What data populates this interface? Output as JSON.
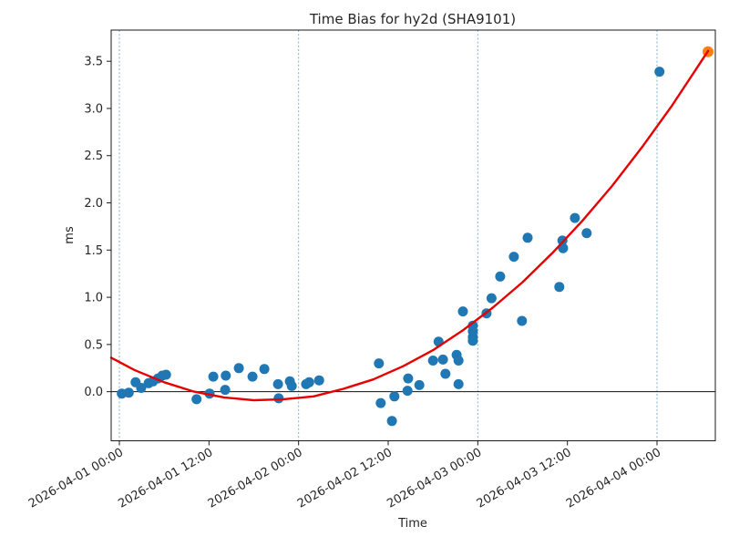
{
  "chart_data": {
    "type": "scatter",
    "title": "Time Bias for hy2d (SHA9101)",
    "xlabel": "Time",
    "ylabel": "ms",
    "x_origin": "2026-04-01 00:00",
    "x_tick_hours": [
      0,
      12,
      24,
      36,
      48,
      60,
      72
    ],
    "x_tick_labels": [
      "2026-04-01 00:00",
      "2026-04-01 12:00",
      "2026-04-02 00:00",
      "2026-04-02 12:00",
      "2026-04-03 00:00",
      "2026-04-03 12:00",
      "2026-04-04 00:00"
    ],
    "y_ticks": [
      0.0,
      0.5,
      1.0,
      1.5,
      2.0,
      2.5,
      3.0,
      3.5
    ],
    "xlim_hours": [
      -1.1,
      79.81
    ],
    "ylim": [
      -0.52,
      3.83
    ],
    "day_gridlines_hours": [
      0,
      24,
      48,
      72
    ],
    "gridline_color": "#6fa8d2",
    "zero_line_ms": 0,
    "legend": "none",
    "series": [
      {
        "name": "bias measurements",
        "marker": "circle",
        "color": "#1f77b4",
        "points": [
          [
            "2026-04-01 00:20",
            -0.02
          ],
          [
            "2026-04-01 01:15",
            -0.01
          ],
          [
            "2026-04-01 02:10",
            0.1
          ],
          [
            "2026-04-01 02:55",
            0.04
          ],
          [
            "2026-04-01 03:55",
            0.09
          ],
          [
            "2026-04-01 04:30",
            0.11
          ],
          [
            "2026-04-01 05:10",
            0.14
          ],
          [
            "2026-04-01 05:45",
            0.17
          ],
          [
            "2026-04-01 06:15",
            0.18
          ],
          [
            "2026-04-01 10:20",
            -0.08
          ],
          [
            "2026-04-01 12:05",
            -0.02
          ],
          [
            "2026-04-01 12:35",
            0.16
          ],
          [
            "2026-04-01 14:10",
            0.02
          ],
          [
            "2026-04-01 14:15",
            0.17
          ],
          [
            "2026-04-01 16:00",
            0.25
          ],
          [
            "2026-04-01 17:50",
            0.16
          ],
          [
            "2026-04-01 19:25",
            0.24
          ],
          [
            "2026-04-01 21:15",
            0.08
          ],
          [
            "2026-04-01 21:20",
            -0.07
          ],
          [
            "2026-04-01 22:50",
            0.11
          ],
          [
            "2026-04-01 23:05",
            0.06
          ],
          [
            "2026-04-02 01:00",
            0.08
          ],
          [
            "2026-04-02 01:25",
            0.1
          ],
          [
            "2026-04-02 02:45",
            0.12
          ],
          [
            "2026-04-02 10:45",
            0.3
          ],
          [
            "2026-04-02 11:00",
            -0.12
          ],
          [
            "2026-04-02 12:30",
            -0.31
          ],
          [
            "2026-04-02 12:50",
            -0.05
          ],
          [
            "2026-04-02 14:35",
            0.01
          ],
          [
            "2026-04-02 14:40",
            0.14
          ],
          [
            "2026-04-02 16:10",
            0.07
          ],
          [
            "2026-04-02 18:00",
            0.33
          ],
          [
            "2026-04-02 18:45",
            0.53
          ],
          [
            "2026-04-02 19:20",
            0.34
          ],
          [
            "2026-04-02 19:40",
            0.19
          ],
          [
            "2026-04-02 21:10",
            0.39
          ],
          [
            "2026-04-02 21:25",
            0.33
          ],
          [
            "2026-04-02 21:25",
            0.08
          ],
          [
            "2026-04-02 22:00",
            0.85
          ],
          [
            "2026-04-02 23:20",
            0.7
          ],
          [
            "2026-04-02 23:20",
            0.64
          ],
          [
            "2026-04-02 23:20",
            0.58
          ],
          [
            "2026-04-02 23:20",
            0.54
          ],
          [
            "2026-04-03 01:10",
            0.83
          ],
          [
            "2026-04-03 01:50",
            0.99
          ],
          [
            "2026-04-03 03:00",
            1.22
          ],
          [
            "2026-04-03 04:50",
            1.43
          ],
          [
            "2026-04-03 05:55",
            0.75
          ],
          [
            "2026-04-03 06:40",
            1.63
          ],
          [
            "2026-04-03 10:55",
            1.11
          ],
          [
            "2026-04-03 11:20",
            1.6
          ],
          [
            "2026-04-03 11:25",
            1.52
          ],
          [
            "2026-04-03 13:00",
            1.84
          ],
          [
            "2026-04-03 14:35",
            1.68
          ],
          [
            "2026-04-04 00:20",
            3.39
          ]
        ]
      },
      {
        "name": "latest measurement",
        "marker": "circle",
        "color": "#ff7f0e",
        "points": [
          [
            "2026-04-04 06:50",
            3.6
          ]
        ]
      }
    ],
    "trend_line": {
      "name": "polynomial fit",
      "color": "#e60000",
      "points_hours_ms": [
        [
          -1.1,
          0.36
        ],
        [
          2,
          0.23
        ],
        [
          6,
          0.1
        ],
        [
          10,
          0.0
        ],
        [
          14,
          -0.06
        ],
        [
          18,
          -0.09
        ],
        [
          22,
          -0.08
        ],
        [
          26,
          -0.05
        ],
        [
          30,
          0.03
        ],
        [
          34,
          0.13
        ],
        [
          38,
          0.27
        ],
        [
          42,
          0.44
        ],
        [
          46,
          0.65
        ],
        [
          50,
          0.89
        ],
        [
          54,
          1.16
        ],
        [
          58,
          1.47
        ],
        [
          62,
          1.81
        ],
        [
          66,
          2.18
        ],
        [
          70,
          2.59
        ],
        [
          74,
          3.03
        ],
        [
          78.84,
          3.61
        ]
      ]
    }
  }
}
